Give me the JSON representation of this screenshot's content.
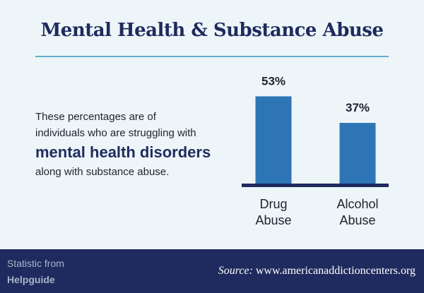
{
  "title": "Mental Health & Substance Abuse",
  "description": {
    "line1": "These percentages are of",
    "line2": "individuals who are struggling with",
    "emphasis": "mental health disorders",
    "line3": "along with substance abuse."
  },
  "chart_data": {
    "type": "bar",
    "categories": [
      [
        "Drug",
        "Abuse"
      ],
      [
        "Alcohol",
        "Abuse"
      ]
    ],
    "values": [
      53,
      37
    ],
    "data_labels": [
      "53%",
      "37%"
    ],
    "ylim": [
      0,
      60
    ],
    "grid": false,
    "colors": {
      "bar": "#2e75b6",
      "axis": "#1f2b5e"
    }
  },
  "footer": {
    "credit_label": "Statistic from",
    "credit_name": "Helpguide",
    "source_label": "Source:",
    "source_url": "www.americanaddictioncenters.org"
  },
  "colors": {
    "background": "#eef5f8",
    "title": "#1f2b5e",
    "rule": "#5fb0c8",
    "footer_bg": "#1f2b5e"
  }
}
